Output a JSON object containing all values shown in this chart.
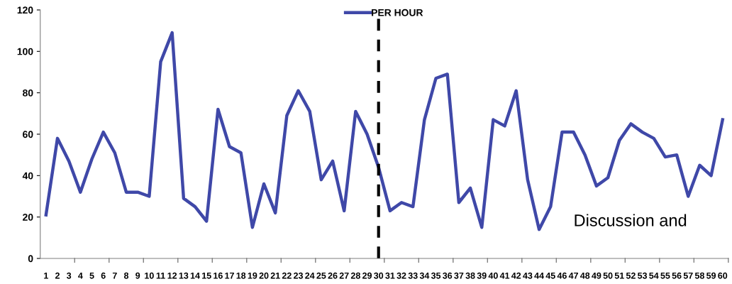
{
  "chart_data": {
    "type": "line",
    "categories": [
      "1",
      "2",
      "3",
      "4",
      "5",
      "6",
      "7",
      "8",
      "9",
      "10",
      "11",
      "12",
      "13",
      "14",
      "15",
      "16",
      "17",
      "18",
      "19",
      "20",
      "21",
      "22",
      "23",
      "24",
      "25",
      "26",
      "27",
      "28",
      "29",
      "30",
      "31",
      "32",
      "33",
      "34",
      "35",
      "36",
      "37",
      "38",
      "39",
      "40",
      "41",
      "42",
      "43",
      "44",
      "45",
      "46",
      "47",
      "48",
      "49",
      "50",
      "51",
      "52",
      "53",
      "54",
      "55",
      "56",
      "57",
      "58",
      "59",
      "60"
    ],
    "series": [
      {
        "name": "PER HOUR",
        "color": "#3f48a8",
        "values": [
          21,
          58,
          47,
          32,
          48,
          61,
          51,
          32,
          32,
          30,
          95,
          109,
          29,
          25,
          18,
          72,
          54,
          51,
          15,
          36,
          22,
          69,
          81,
          71,
          38,
          47,
          23,
          71,
          60,
          44,
          23,
          27,
          25,
          67,
          87,
          89,
          27,
          34,
          15,
          67,
          64,
          81,
          38,
          14,
          25,
          61,
          61,
          50,
          35,
          39,
          57,
          65,
          61,
          58,
          49,
          50,
          30,
          45,
          40,
          67
        ]
      }
    ],
    "ylim": [
      0,
      120
    ],
    "yticks": [
      0,
      20,
      40,
      60,
      80,
      100,
      120
    ],
    "grid": false,
    "legend": "top",
    "marker": "none",
    "line_style": "solid",
    "ref_lines": [
      {
        "axis": "x",
        "value": "30",
        "color": "#000000",
        "line_style": "dashed"
      }
    ],
    "annotations": [
      "Discussion and"
    ]
  }
}
